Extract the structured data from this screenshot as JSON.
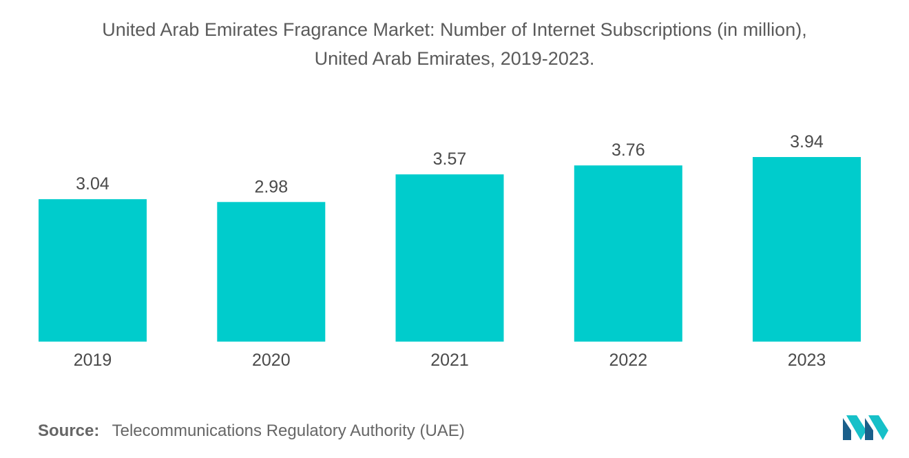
{
  "title_line1": "United Arab Emirates Fragrance Market: Number of Internet Subscriptions (in million),",
  "title_line2": "United Arab Emirates, 2019-2023.",
  "source_key": "Source:",
  "source_text": "Telecommunications Regulatory Authority (UAE)",
  "colors": {
    "bar": "#00cccc",
    "logo_dark": "#1a5f8a",
    "logo_light": "#17c0c8"
  },
  "chart_data": {
    "type": "bar",
    "title": "United Arab Emirates Fragrance Market: Number of Internet Subscriptions (in million), United Arab Emirates, 2019-2023.",
    "categories": [
      "2019",
      "2020",
      "2021",
      "2022",
      "2023"
    ],
    "values": [
      3.04,
      2.98,
      3.57,
      3.76,
      3.94
    ],
    "value_labels": [
      "3.04",
      "2.98",
      "3.57",
      "3.76",
      "3.94"
    ],
    "xlabel": "",
    "ylabel": "",
    "ylim": [
      0,
      3.94
    ],
    "grid": false,
    "legend": "none"
  }
}
